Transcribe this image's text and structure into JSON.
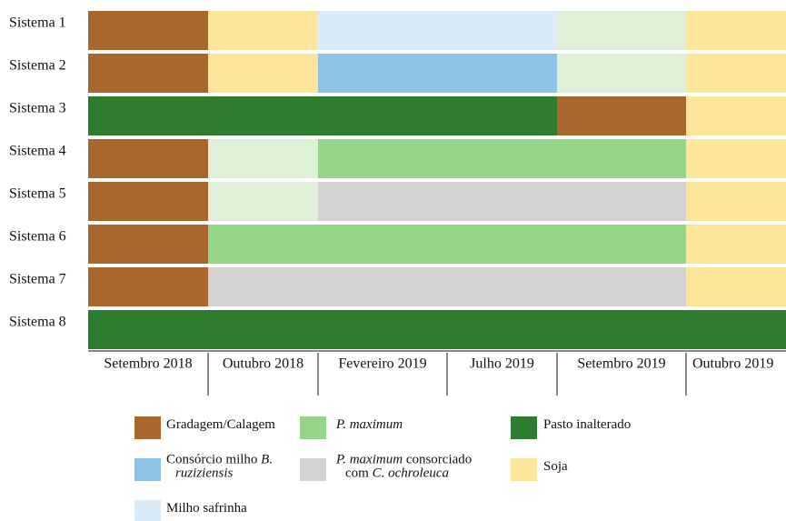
{
  "rows": [
    {
      "label": "Sistema 1",
      "cells": [
        "#a9662d",
        "#fde59a",
        "#dbeaf7",
        "#dbeaf7",
        "#dff0d9",
        "#fde59a"
      ]
    },
    {
      "label": "Sistema 2",
      "cells": [
        "#a9662d",
        "#fde59a",
        "#8ec3e6",
        "#8ec3e6",
        "#dff0d9",
        "#fde59a"
      ]
    },
    {
      "label": "Sistema 3",
      "cells": [
        "#2e7d2e",
        "#2e7d2e",
        "#2e7d2e",
        "#2e7d2e",
        "#a9662d",
        "#fde59a"
      ]
    },
    {
      "label": "Sistema 4",
      "cells": [
        "#a9662d",
        "#dff0d9",
        "#95d58a",
        "#95d58a",
        "#95d58a",
        "#fde59a"
      ]
    },
    {
      "label": "Sistema 5",
      "cells": [
        "#a9662d",
        "#dff0d9",
        "#d5d2d2",
        "#d5d2d2",
        "#d5d2d2",
        "#fde59a"
      ]
    },
    {
      "label": "Sistema 6",
      "cells": [
        "#a9662d",
        "#95d58a",
        "#95d58a",
        "#95d58a",
        "#95d58a",
        "#fde59a"
      ]
    },
    {
      "label": "Sistema 7",
      "cells": [
        "#a9662d",
        "#d5d2d2",
        "#d5d2d2",
        "#d5d2d2",
        "#d5d2d2",
        "#fde59a"
      ]
    },
    {
      "label": "Sistema 8",
      "cells": [
        "#2e7d2e",
        "#2e7d2e",
        "#2e7d2e",
        "#2e7d2e",
        "#2e7d2e",
        "#2e7d2e"
      ]
    }
  ],
  "periods": [
    "Setembro 2018",
    "Outubro 2018",
    "Fevereiro 2019",
    "Julho 2019",
    "Setembro 2019",
    "Outubro 2019"
  ],
  "legend": [
    {
      "color": "#a9662d",
      "lines": [
        [
          {
            "text": "Gradagem/Calagem"
          }
        ]
      ]
    },
    {
      "color": "#95d58a",
      "lines": [
        [
          {
            "text": "P. maximum",
            "italic": true
          }
        ]
      ]
    },
    {
      "color": "#2e7d2e",
      "lines": [
        [
          {
            "text": "Pasto inalterado"
          }
        ]
      ]
    },
    {
      "color": "#8ec3e6",
      "lines": [
        [
          {
            "text": "Consórcio milho "
          },
          {
            "text": "B.",
            "italic": true
          }
        ],
        [
          {
            "text": "ruziziensis",
            "italic": true
          }
        ]
      ]
    },
    {
      "color": "#d5d2d2",
      "lines": [
        [
          {
            "text": "P. maximum",
            "italic": true
          },
          {
            "text": " consorciado"
          }
        ],
        [
          {
            "text": "com "
          },
          {
            "text": "C. ochroleuca",
            "italic": true
          }
        ]
      ]
    },
    {
      "color": "#fde59a",
      "lines": [
        [
          {
            "text": "Soja"
          }
        ]
      ]
    },
    {
      "color": "#dbeaf7",
      "lines": [
        [
          {
            "text": "Milho safrinha"
          }
        ]
      ]
    }
  ]
}
